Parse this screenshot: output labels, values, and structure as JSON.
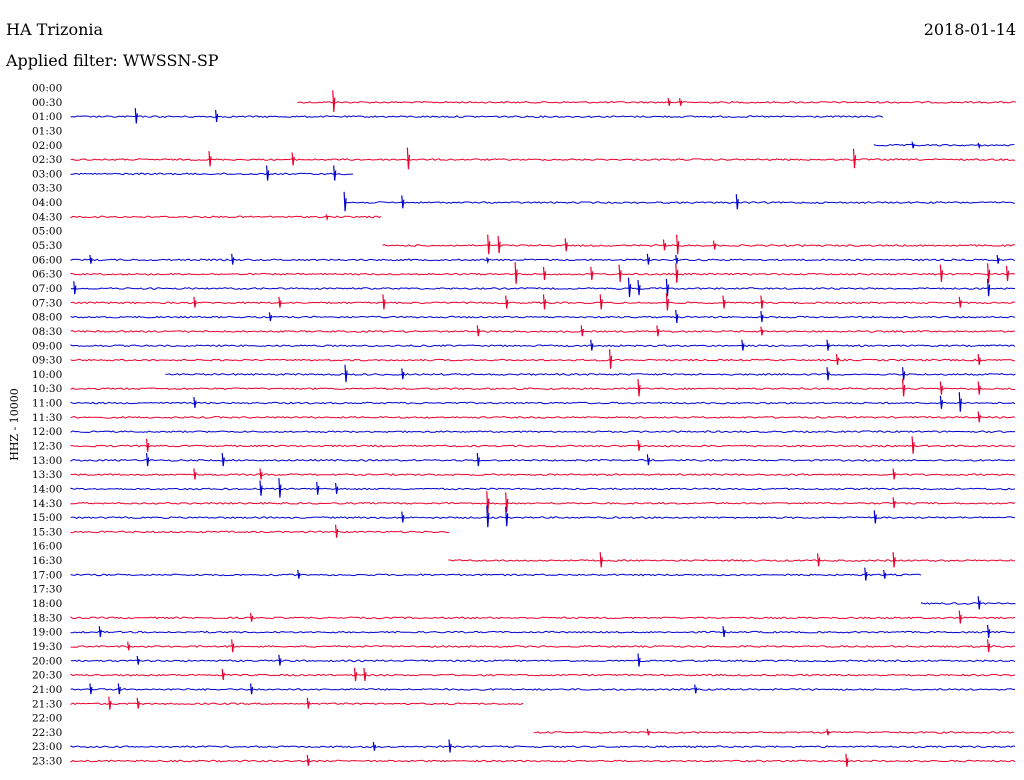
{
  "header": {
    "station": "HA Trizonia",
    "date": "2018-01-14",
    "filter": "Applied filter: WWSSN-SP",
    "channel": "HHZ - 10000"
  },
  "colors": {
    "odd": "#0000cc",
    "even": "#e8002e"
  },
  "chart_data": {
    "type": "line",
    "title": "HA Trizonia",
    "ylabel": "HHZ - 10000",
    "rows": [
      {
        "label": "00:00",
        "start": null,
        "end": null,
        "events": []
      },
      {
        "label": "00:30",
        "start": 0.24,
        "end": 1.0,
        "events": [
          [
            0.277,
            1.0
          ],
          [
            0.632,
            0.35
          ],
          [
            0.644,
            0.35
          ]
        ]
      },
      {
        "label": "01:00",
        "start": 0.0,
        "end": 0.86,
        "events": [
          [
            0.068,
            0.7
          ],
          [
            0.153,
            0.55
          ]
        ]
      },
      {
        "label": "01:30",
        "start": null,
        "end": null,
        "events": []
      },
      {
        "label": "02:00",
        "start": 0.85,
        "end": 1.0,
        "events": [
          [
            0.89,
            0.3
          ],
          [
            0.96,
            0.2
          ]
        ]
      },
      {
        "label": "02:30",
        "start": 0.0,
        "end": 1.0,
        "events": [
          [
            0.146,
            0.7
          ],
          [
            0.234,
            0.6
          ],
          [
            0.356,
            1.0
          ],
          [
            0.828,
            0.9
          ]
        ]
      },
      {
        "label": "03:00",
        "start": 0.0,
        "end": 0.3,
        "events": [
          [
            0.207,
            0.7
          ],
          [
            0.278,
            0.7
          ]
        ]
      },
      {
        "label": "03:30",
        "start": null,
        "end": null,
        "events": []
      },
      {
        "label": "04:00",
        "start": 0.29,
        "end": 1.0,
        "events": [
          [
            0.289,
            0.9
          ],
          [
            0.35,
            0.6
          ],
          [
            0.704,
            0.7
          ]
        ]
      },
      {
        "label": "04:30",
        "start": 0.0,
        "end": 0.33,
        "events": [
          [
            0.27,
            0.2
          ]
        ]
      },
      {
        "label": "05:00",
        "start": null,
        "end": null,
        "events": []
      },
      {
        "label": "05:30",
        "start": 0.33,
        "end": 1.0,
        "events": [
          [
            0.441,
            0.9
          ],
          [
            0.452,
            0.8
          ],
          [
            0.523,
            0.6
          ],
          [
            0.627,
            0.5
          ],
          [
            0.641,
            0.9
          ],
          [
            0.68,
            0.4
          ]
        ]
      },
      {
        "label": "06:00",
        "start": 0.0,
        "end": 1.0,
        "events": [
          [
            0.02,
            0.4
          ],
          [
            0.17,
            0.5
          ],
          [
            0.44,
            0.2
          ],
          [
            0.61,
            0.5
          ],
          [
            0.64,
            0.4
          ],
          [
            0.98,
            0.4
          ]
        ]
      },
      {
        "label": "06:30",
        "start": 0.0,
        "end": 1.0,
        "events": [
          [
            0.47,
            1.0
          ],
          [
            0.5,
            0.6
          ],
          [
            0.55,
            0.6
          ],
          [
            0.58,
            0.8
          ],
          [
            0.64,
            0.9
          ],
          [
            0.92,
            0.8
          ],
          [
            0.97,
            0.9
          ],
          [
            0.99,
            0.7
          ]
        ]
      },
      {
        "label": "07:00",
        "start": 0.0,
        "end": 1.0,
        "events": [
          [
            0.003,
            0.6
          ],
          [
            0.59,
            0.9
          ],
          [
            0.6,
            0.7
          ],
          [
            0.63,
            0.8
          ],
          [
            0.97,
            0.8
          ]
        ]
      },
      {
        "label": "07:30",
        "start": 0.0,
        "end": 1.0,
        "events": [
          [
            0.13,
            0.5
          ],
          [
            0.22,
            0.5
          ],
          [
            0.33,
            0.7
          ],
          [
            0.46,
            0.6
          ],
          [
            0.5,
            0.7
          ],
          [
            0.56,
            0.7
          ],
          [
            0.63,
            0.8
          ],
          [
            0.69,
            0.6
          ],
          [
            0.73,
            0.6
          ],
          [
            0.94,
            0.5
          ]
        ]
      },
      {
        "label": "08:00",
        "start": 0.0,
        "end": 1.0,
        "events": [
          [
            0.21,
            0.4
          ],
          [
            0.64,
            0.6
          ],
          [
            0.73,
            0.5
          ]
        ]
      },
      {
        "label": "08:30",
        "start": 0.0,
        "end": 1.0,
        "events": [
          [
            0.43,
            0.5
          ],
          [
            0.54,
            0.5
          ],
          [
            0.62,
            0.5
          ],
          [
            0.73,
            0.4
          ]
        ]
      },
      {
        "label": "09:00",
        "start": 0.0,
        "end": 1.0,
        "events": [
          [
            0.55,
            0.5
          ],
          [
            0.71,
            0.5
          ],
          [
            0.8,
            0.5
          ]
        ]
      },
      {
        "label": "09:30",
        "start": 0.0,
        "end": 1.0,
        "events": [
          [
            0.57,
            0.9
          ],
          [
            0.81,
            0.5
          ],
          [
            0.96,
            0.5
          ]
        ]
      },
      {
        "label": "10:00",
        "start": 0.1,
        "end": 1.0,
        "events": [
          [
            0.29,
            0.8
          ],
          [
            0.35,
            0.5
          ],
          [
            0.8,
            0.6
          ],
          [
            0.88,
            0.6
          ]
        ]
      },
      {
        "label": "10:30",
        "start": 0.0,
        "end": 1.0,
        "events": [
          [
            0.6,
            0.8
          ],
          [
            0.88,
            0.8
          ],
          [
            0.92,
            0.6
          ],
          [
            0.96,
            0.6
          ]
        ]
      },
      {
        "label": "11:00",
        "start": 0.0,
        "end": 1.0,
        "events": [
          [
            0.13,
            0.5
          ],
          [
            0.92,
            0.6
          ],
          [
            0.94,
            0.9
          ]
        ]
      },
      {
        "label": "11:30",
        "start": 0.0,
        "end": 1.0,
        "events": [
          [
            0.96,
            0.5
          ]
        ]
      },
      {
        "label": "12:00",
        "start": 0.0,
        "end": 1.0,
        "events": []
      },
      {
        "label": "12:30",
        "start": 0.0,
        "end": 1.0,
        "events": [
          [
            0.08,
            0.6
          ],
          [
            0.6,
            0.5
          ],
          [
            0.89,
            0.8
          ]
        ]
      },
      {
        "label": "13:00",
        "start": 0.0,
        "end": 1.0,
        "events": [
          [
            0.08,
            0.6
          ],
          [
            0.16,
            0.6
          ],
          [
            0.43,
            0.6
          ],
          [
            0.61,
            0.5
          ]
        ]
      },
      {
        "label": "13:30",
        "start": 0.0,
        "end": 1.0,
        "events": [
          [
            0.13,
            0.5
          ],
          [
            0.2,
            0.5
          ],
          [
            0.87,
            0.5
          ]
        ]
      },
      {
        "label": "14:00",
        "start": 0.0,
        "end": 1.0,
        "events": [
          [
            0.2,
            0.7
          ],
          [
            0.22,
            0.9
          ],
          [
            0.26,
            0.6
          ],
          [
            0.28,
            0.5
          ]
        ]
      },
      {
        "label": "14:30",
        "start": 0.0,
        "end": 1.0,
        "events": [
          [
            0.44,
            1.0
          ],
          [
            0.46,
            0.9
          ],
          [
            0.87,
            0.5
          ]
        ]
      },
      {
        "label": "15:00",
        "start": 0.0,
        "end": 1.0,
        "events": [
          [
            0.35,
            0.5
          ],
          [
            0.44,
            1.0
          ],
          [
            0.46,
            0.9
          ],
          [
            0.85,
            0.6
          ]
        ]
      },
      {
        "label": "15:30",
        "start": 0.0,
        "end": 0.4,
        "events": [
          [
            0.28,
            0.6
          ]
        ]
      },
      {
        "label": "16:00",
        "start": null,
        "end": null,
        "events": []
      },
      {
        "label": "16:30",
        "start": 0.4,
        "end": 1.0,
        "events": [
          [
            0.56,
            0.7
          ],
          [
            0.79,
            0.6
          ],
          [
            0.87,
            0.7
          ]
        ]
      },
      {
        "label": "17:00",
        "start": 0.0,
        "end": 0.9,
        "events": [
          [
            0.24,
            0.4
          ],
          [
            0.84,
            0.6
          ],
          [
            0.86,
            0.4
          ]
        ]
      },
      {
        "label": "17:30",
        "start": null,
        "end": null,
        "events": []
      },
      {
        "label": "18:00",
        "start": 0.9,
        "end": 1.0,
        "events": [
          [
            0.96,
            0.6
          ]
        ]
      },
      {
        "label": "18:30",
        "start": 0.0,
        "end": 1.0,
        "events": [
          [
            0.19,
            0.4
          ],
          [
            0.94,
            0.6
          ]
        ]
      },
      {
        "label": "19:00",
        "start": 0.0,
        "end": 1.0,
        "events": [
          [
            0.03,
            0.5
          ],
          [
            0.69,
            0.5
          ],
          [
            0.97,
            0.6
          ]
        ]
      },
      {
        "label": "19:30",
        "start": 0.0,
        "end": 1.0,
        "events": [
          [
            0.06,
            0.4
          ],
          [
            0.17,
            0.6
          ],
          [
            0.97,
            0.6
          ]
        ]
      },
      {
        "label": "20:00",
        "start": 0.0,
        "end": 1.0,
        "events": [
          [
            0.07,
            0.4
          ],
          [
            0.22,
            0.5
          ],
          [
            0.6,
            0.6
          ]
        ]
      },
      {
        "label": "20:30",
        "start": 0.0,
        "end": 1.0,
        "events": [
          [
            0.16,
            0.5
          ],
          [
            0.3,
            0.6
          ],
          [
            0.31,
            0.6
          ]
        ]
      },
      {
        "label": "21:00",
        "start": 0.0,
        "end": 1.0,
        "events": [
          [
            0.02,
            0.5
          ],
          [
            0.05,
            0.5
          ],
          [
            0.19,
            0.5
          ],
          [
            0.66,
            0.4
          ]
        ]
      },
      {
        "label": "21:30",
        "start": 0.0,
        "end": 0.48,
        "events": [
          [
            0.04,
            0.6
          ],
          [
            0.07,
            0.5
          ],
          [
            0.25,
            0.5
          ]
        ]
      },
      {
        "label": "22:00",
        "start": null,
        "end": null,
        "events": []
      },
      {
        "label": "22:30",
        "start": 0.49,
        "end": 1.0,
        "events": [
          [
            0.61,
            0.3
          ],
          [
            0.8,
            0.3
          ]
        ]
      },
      {
        "label": "23:00",
        "start": 0.0,
        "end": 1.0,
        "events": [
          [
            0.32,
            0.4
          ],
          [
            0.4,
            0.6
          ]
        ]
      },
      {
        "label": "23:30",
        "start": 0.0,
        "end": 1.0,
        "events": [
          [
            0.25,
            0.5
          ],
          [
            0.82,
            0.6
          ]
        ]
      }
    ]
  }
}
